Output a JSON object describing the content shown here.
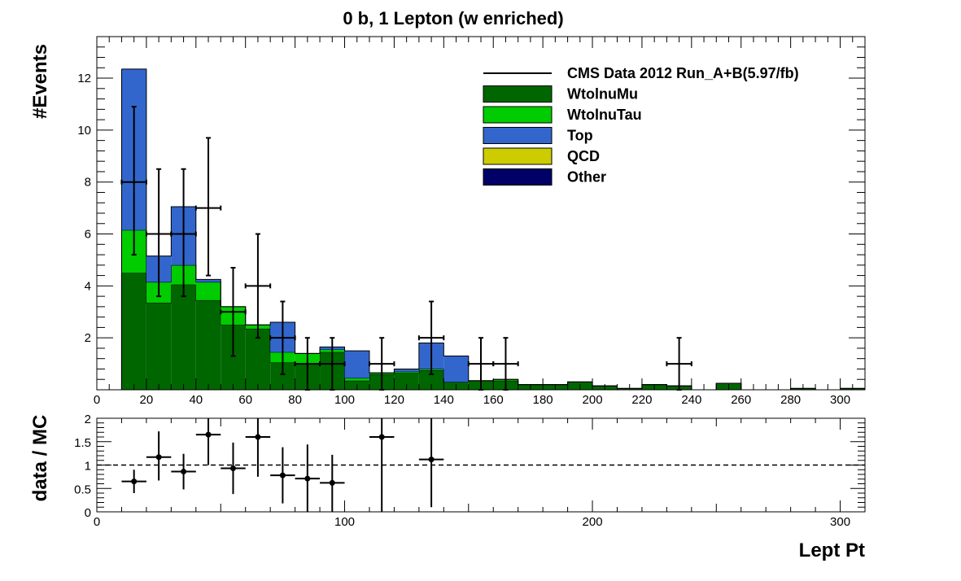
{
  "chart_data": [
    {
      "type": "bar",
      "title": "0 b, 1 Lepton (w enriched)",
      "ylabel": "#Events",
      "xlabel": "",
      "xlim": [
        0,
        310
      ],
      "ylim": [
        0,
        13.6
      ],
      "bin_width": 10,
      "x_ticks": [
        0,
        20,
        40,
        60,
        80,
        100,
        120,
        140,
        160,
        180,
        200,
        220,
        240,
        260,
        280,
        300
      ],
      "y_ticks": [
        2,
        4,
        6,
        8,
        10,
        12
      ],
      "x_tick_labels": [
        "0",
        "20",
        "40",
        "60",
        "80",
        "100",
        "120",
        "140",
        "160",
        "180",
        "200",
        "220",
        "240",
        "260",
        "280",
        "300"
      ],
      "y_tick_labels": [
        "2",
        "4",
        "6",
        "8",
        "10",
        "12"
      ],
      "stacked": true,
      "bin_low_edges": [
        10,
        20,
        30,
        40,
        50,
        60,
        70,
        80,
        90,
        100,
        110,
        120,
        130,
        140,
        150,
        160,
        170,
        180,
        190,
        200,
        210,
        220,
        230,
        240,
        250,
        260,
        270,
        280,
        290,
        300
      ],
      "series": [
        {
          "name": "Other",
          "color": "#000066",
          "values": [
            0,
            0,
            0,
            0,
            0,
            0,
            0,
            0,
            0,
            0,
            0,
            0,
            0,
            0,
            0,
            0,
            0,
            0,
            0,
            0,
            0,
            0,
            0,
            0,
            0,
            0,
            0,
            0,
            0,
            0
          ]
        },
        {
          "name": "QCD",
          "color": "#cccc00",
          "values": [
            0,
            0,
            0,
            0,
            0,
            0,
            0,
            0,
            0,
            0,
            0,
            0,
            0,
            0,
            0,
            0,
            0,
            0,
            0,
            0,
            0,
            0,
            0,
            0,
            0,
            0,
            0,
            0,
            0,
            0
          ]
        },
        {
          "name": "WtolnuMu",
          "color": "#006600",
          "values": [
            4.5,
            3.35,
            4.05,
            3.45,
            2.5,
            2.35,
            1.05,
            1.0,
            1.45,
            0.35,
            0.6,
            0.65,
            0.75,
            0.3,
            0.35,
            0.35,
            0.2,
            0.2,
            0.3,
            0.15,
            0.05,
            0.2,
            0.15,
            0.0,
            0.25,
            0.0,
            0.0,
            0.05,
            0.0,
            0.05
          ]
        },
        {
          "name": "WtolnuTau",
          "color": "#00cc00",
          "values": [
            1.65,
            0.8,
            0.75,
            0.7,
            0.7,
            0.15,
            0.4,
            0.4,
            0.1,
            0.1,
            0.05,
            0.05,
            0.05,
            0.0,
            0.0,
            0.05,
            0.0,
            0.0,
            0.0,
            0.0,
            0.0,
            0.0,
            0.0,
            0.0,
            0.0,
            0.0,
            0.0,
            0.0,
            0.0,
            0.0
          ]
        },
        {
          "name": "Top",
          "color": "#3366cc",
          "values": [
            6.2,
            1.0,
            2.25,
            0.1,
            0.0,
            0.0,
            1.15,
            0.0,
            0.1,
            1.05,
            0.0,
            0.1,
            1.0,
            1.0,
            0.0,
            0.0,
            0.0,
            0.0,
            0.0,
            0.0,
            0.0,
            0.0,
            0.0,
            0.0,
            0.0,
            0.0,
            0.0,
            0.0,
            0.0,
            0.0
          ]
        }
      ],
      "data": {
        "name": "CMS Data 2012 Run_A+B(5.97/fb)",
        "color": "#000000",
        "points": [
          {
            "x": 15,
            "y": 8,
            "err_low": 2.8,
            "err_high": 2.9
          },
          {
            "x": 25,
            "y": 6,
            "err_low": 2.4,
            "err_high": 2.5
          },
          {
            "x": 35,
            "y": 6,
            "err_low": 2.4,
            "err_high": 2.5
          },
          {
            "x": 45,
            "y": 7,
            "err_low": 2.6,
            "err_high": 2.7
          },
          {
            "x": 55,
            "y": 3,
            "err_low": 1.7,
            "err_high": 1.7
          },
          {
            "x": 65,
            "y": 4,
            "err_low": 2.0,
            "err_high": 2.0
          },
          {
            "x": 75,
            "y": 2,
            "err_low": 1.4,
            "err_high": 1.4
          },
          {
            "x": 85,
            "y": 1,
            "err_low": 1.0,
            "err_high": 1.0
          },
          {
            "x": 95,
            "y": 1,
            "err_low": 1.0,
            "err_high": 1.0
          },
          {
            "x": 115,
            "y": 1,
            "err_low": 1.0,
            "err_high": 1.0
          },
          {
            "x": 135,
            "y": 2,
            "err_low": 1.4,
            "err_high": 1.4
          },
          {
            "x": 155,
            "y": 1,
            "err_low": 1.0,
            "err_high": 1.0
          },
          {
            "x": 165,
            "y": 1,
            "err_low": 1.0,
            "err_high": 1.0
          },
          {
            "x": 235,
            "y": 1,
            "err_low": 1.0,
            "err_high": 1.0
          }
        ]
      },
      "legend": {
        "position": "top-right",
        "entries": [
          {
            "label": "CMS Data 2012 Run_A+B(5.97/fb)",
            "kind": "line",
            "color": "#000000"
          },
          {
            "label": "WtolnuMu",
            "kind": "box",
            "color": "#006600"
          },
          {
            "label": "WtolnuTau",
            "kind": "box",
            "color": "#00cc00"
          },
          {
            "label": "Top",
            "kind": "box",
            "color": "#3366cc"
          },
          {
            "label": "QCD",
            "kind": "box",
            "color": "#cccc00"
          },
          {
            "label": "Other",
            "kind": "box",
            "color": "#000066"
          }
        ]
      }
    },
    {
      "type": "scatter",
      "ylabel": "data / MC",
      "xlabel": "Lept Pt",
      "xlim": [
        0,
        310
      ],
      "ylim": [
        0,
        2
      ],
      "x_ticks": [
        0,
        100,
        200,
        300
      ],
      "x_tick_labels": [
        "0",
        "100",
        "200",
        "300"
      ],
      "y_ticks": [
        0,
        0.5,
        1,
        1.5,
        2
      ],
      "y_tick_labels": [
        "0",
        "0.5",
        "1",
        "1.5",
        "2"
      ],
      "reference_line": 1,
      "points": [
        {
          "x": 15,
          "y": 0.65,
          "err_low": 0.25,
          "err_high": 0.25
        },
        {
          "x": 25,
          "y": 1.17,
          "err_low": 0.5,
          "err_high": 0.55
        },
        {
          "x": 35,
          "y": 0.86,
          "err_low": 0.38,
          "err_high": 0.38
        },
        {
          "x": 45,
          "y": 1.65,
          "err_low": 0.65,
          "err_high": 0.7
        },
        {
          "x": 55,
          "y": 0.93,
          "err_low": 0.55,
          "err_high": 0.55
        },
        {
          "x": 65,
          "y": 1.6,
          "err_low": 0.85,
          "err_high": 0.85
        },
        {
          "x": 75,
          "y": 0.78,
          "err_low": 0.6,
          "err_high": 0.6
        },
        {
          "x": 85,
          "y": 0.71,
          "err_low": 0.71,
          "err_high": 0.73
        },
        {
          "x": 95,
          "y": 0.62,
          "err_low": 0.62,
          "err_high": 0.6
        },
        {
          "x": 115,
          "y": 1.6,
          "err_low": 1.6,
          "err_high": 1.6
        },
        {
          "x": 135,
          "y": 1.12,
          "err_low": 1.02,
          "err_high": 1.02
        }
      ]
    }
  ]
}
